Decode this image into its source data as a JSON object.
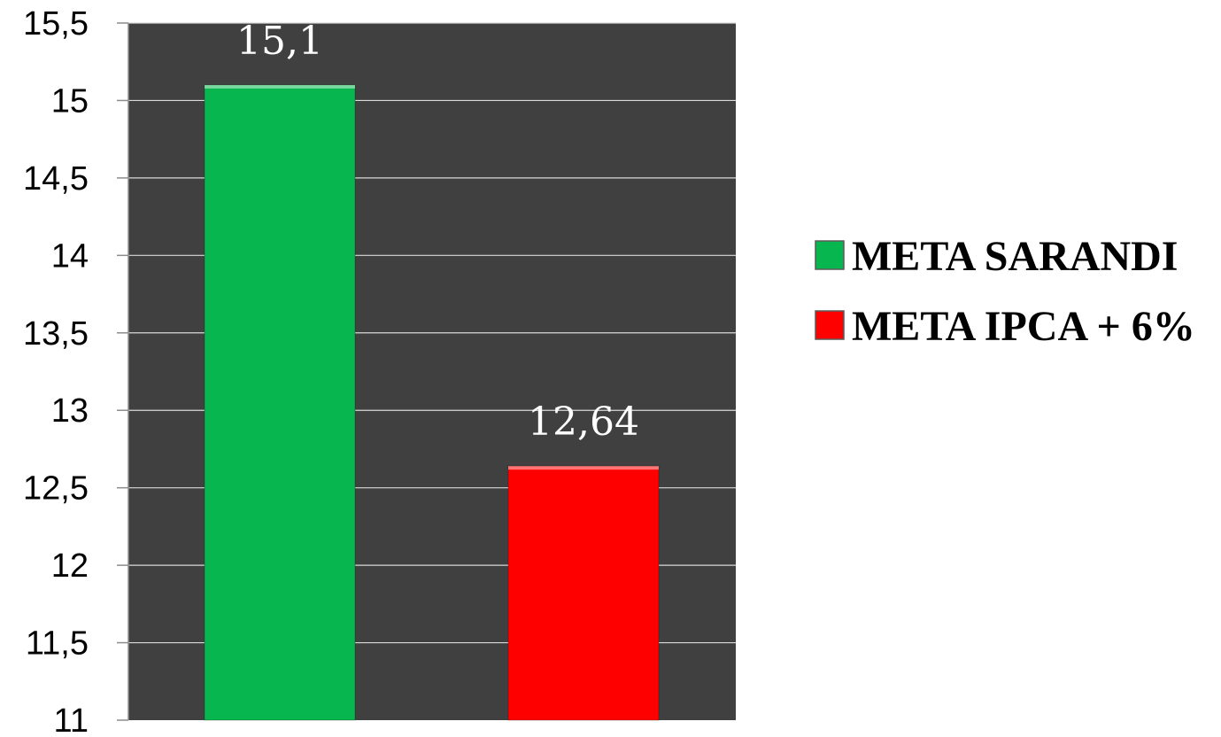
{
  "chart_data": {
    "type": "bar",
    "categories": [
      ""
    ],
    "series": [
      {
        "name": "META SARANDI",
        "value": 15.1,
        "label": "15,1",
        "color": "#08b64f"
      },
      {
        "name": "META IPCA + 6%",
        "value": 12.64,
        "label": "12,64",
        "color": "#ff0000"
      }
    ],
    "ylim": [
      11,
      15.5
    ],
    "yticks": [
      {
        "value": 11,
        "label": "11"
      },
      {
        "value": 11.5,
        "label": "11,5"
      },
      {
        "value": 12,
        "label": "12"
      },
      {
        "value": 12.5,
        "label": "12,5"
      },
      {
        "value": 13,
        "label": "13"
      },
      {
        "value": 13.5,
        "label": "13,5"
      },
      {
        "value": 14,
        "label": "14"
      },
      {
        "value": 14.5,
        "label": "14,5"
      },
      {
        "value": 15,
        "label": "15"
      },
      {
        "value": 15.5,
        "label": "15,5"
      }
    ],
    "plot_background": "#404040",
    "grid": true,
    "grid_color": "#d9d9d9",
    "legend_position": "right",
    "title": "",
    "xlabel": "",
    "ylabel": ""
  }
}
